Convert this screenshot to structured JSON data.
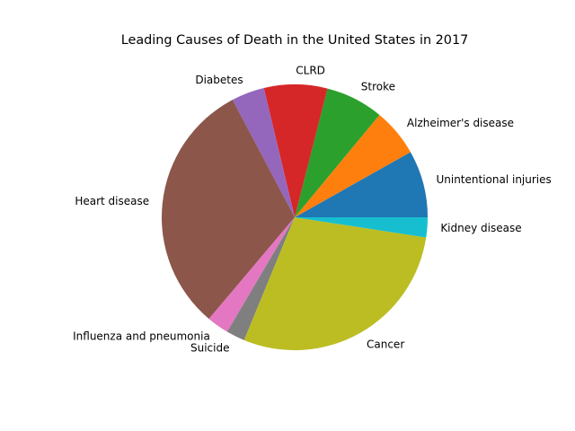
{
  "chart_data": {
    "type": "pie",
    "title": "Leading Causes of Death in the United States in 2017",
    "start_angle_deg": 0,
    "direction": "counterclockwise",
    "slices": [
      {
        "label": "Unintentional injuries",
        "value": 169936,
        "color": "#1f77b4"
      },
      {
        "label": "Alzheimer's disease",
        "value": 121404,
        "color": "#ff7f0e"
      },
      {
        "label": "Stroke",
        "value": 146383,
        "color": "#2ca02c"
      },
      {
        "label": "CLRD",
        "value": 160201,
        "color": "#d62728"
      },
      {
        "label": "Diabetes",
        "value": 83564,
        "color": "#9467bd"
      },
      {
        "label": "Heart disease",
        "value": 647457,
        "color": "#8c564b"
      },
      {
        "label": "Influenza and pneumonia",
        "value": 55672,
        "color": "#e377c2"
      },
      {
        "label": "Suicide",
        "value": 47173,
        "color": "#7f7f7f"
      },
      {
        "label": "Cancer",
        "value": 599108,
        "color": "#bcbd22"
      },
      {
        "label": "Kidney disease",
        "value": 50633,
        "color": "#17becf"
      }
    ]
  }
}
